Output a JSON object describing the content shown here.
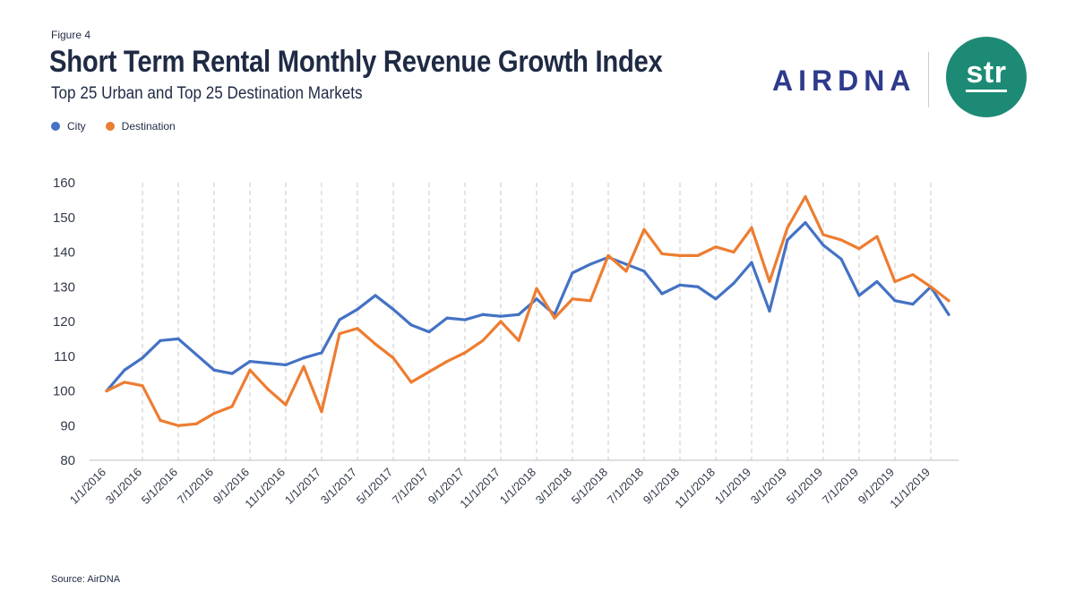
{
  "header": {
    "figure_label": "Figure 4",
    "title": "Short Term Rental Monthly Revenue Growth Index",
    "subtitle": "Top 25 Urban and Top 25 Destination Markets"
  },
  "logos": {
    "airdna": "AIRDNA",
    "str": "str"
  },
  "footer": {
    "source": "Source: AirDNA"
  },
  "colors": {
    "city": "#4472c4",
    "destination": "#ed7d31",
    "text": "#1f2a44",
    "str_green": "#1d8a75",
    "airdna_blue": "#2e3a8c"
  },
  "chart_data": {
    "type": "line",
    "title": "Short Term Rental Monthly Revenue Growth Index",
    "subtitle": "Top 25 Urban and Top 25 Destination Markets",
    "xlabel": "",
    "ylabel": "",
    "ylim": [
      80,
      160
    ],
    "yticks": [
      80,
      90,
      100,
      110,
      120,
      130,
      140,
      150,
      160
    ],
    "xtick_labels": [
      "1/1/2016",
      "3/1/2016",
      "5/1/2016",
      "7/1/2016",
      "9/1/2016",
      "11/1/2016",
      "1/1/2017",
      "3/1/2017",
      "5/1/2017",
      "7/1/2017",
      "9/1/2017",
      "11/1/2017",
      "1/1/2018",
      "3/1/2018",
      "5/1/2018",
      "7/1/2018",
      "9/1/2018",
      "11/1/2018",
      "1/1/2019",
      "3/1/2019",
      "5/1/2019",
      "7/1/2019",
      "9/1/2019",
      "11/1/2019"
    ],
    "xtick_step_months": 2,
    "num_months": 48,
    "legend_position": "top-left",
    "grid": "vertical dashed at each labeled tick",
    "series": [
      {
        "name": "City",
        "color": "#4472c4",
        "values": [
          100,
          106,
          109.5,
          114.5,
          115,
          110.5,
          106,
          105,
          108.5,
          108,
          107.5,
          109.5,
          111,
          120.5,
          123.5,
          127.5,
          123.5,
          119,
          117,
          121,
          120.5,
          122,
          121.5,
          122,
          126.5,
          122,
          134,
          136.5,
          138.5,
          136.5,
          134.5,
          128,
          130.5,
          130,
          126.5,
          131,
          137,
          123,
          143.5,
          148.5,
          142,
          138,
          127.5,
          131.5,
          126,
          125,
          130,
          122
        ]
      },
      {
        "name": "Destination",
        "color": "#ed7d31",
        "values": [
          100,
          102.5,
          101.5,
          91.5,
          90,
          90.5,
          93.5,
          95.5,
          106,
          100.5,
          96,
          107,
          94,
          116.5,
          118,
          113.5,
          109.5,
          102.5,
          105.5,
          108.5,
          111,
          114.5,
          120,
          114.5,
          129.5,
          121,
          126.5,
          126,
          139,
          134.5,
          146.5,
          139.5,
          139,
          139,
          141.5,
          140,
          147,
          131.5,
          147,
          156,
          145,
          143.5,
          141,
          144.5,
          131.5,
          133.5,
          130,
          126
        ]
      }
    ]
  }
}
